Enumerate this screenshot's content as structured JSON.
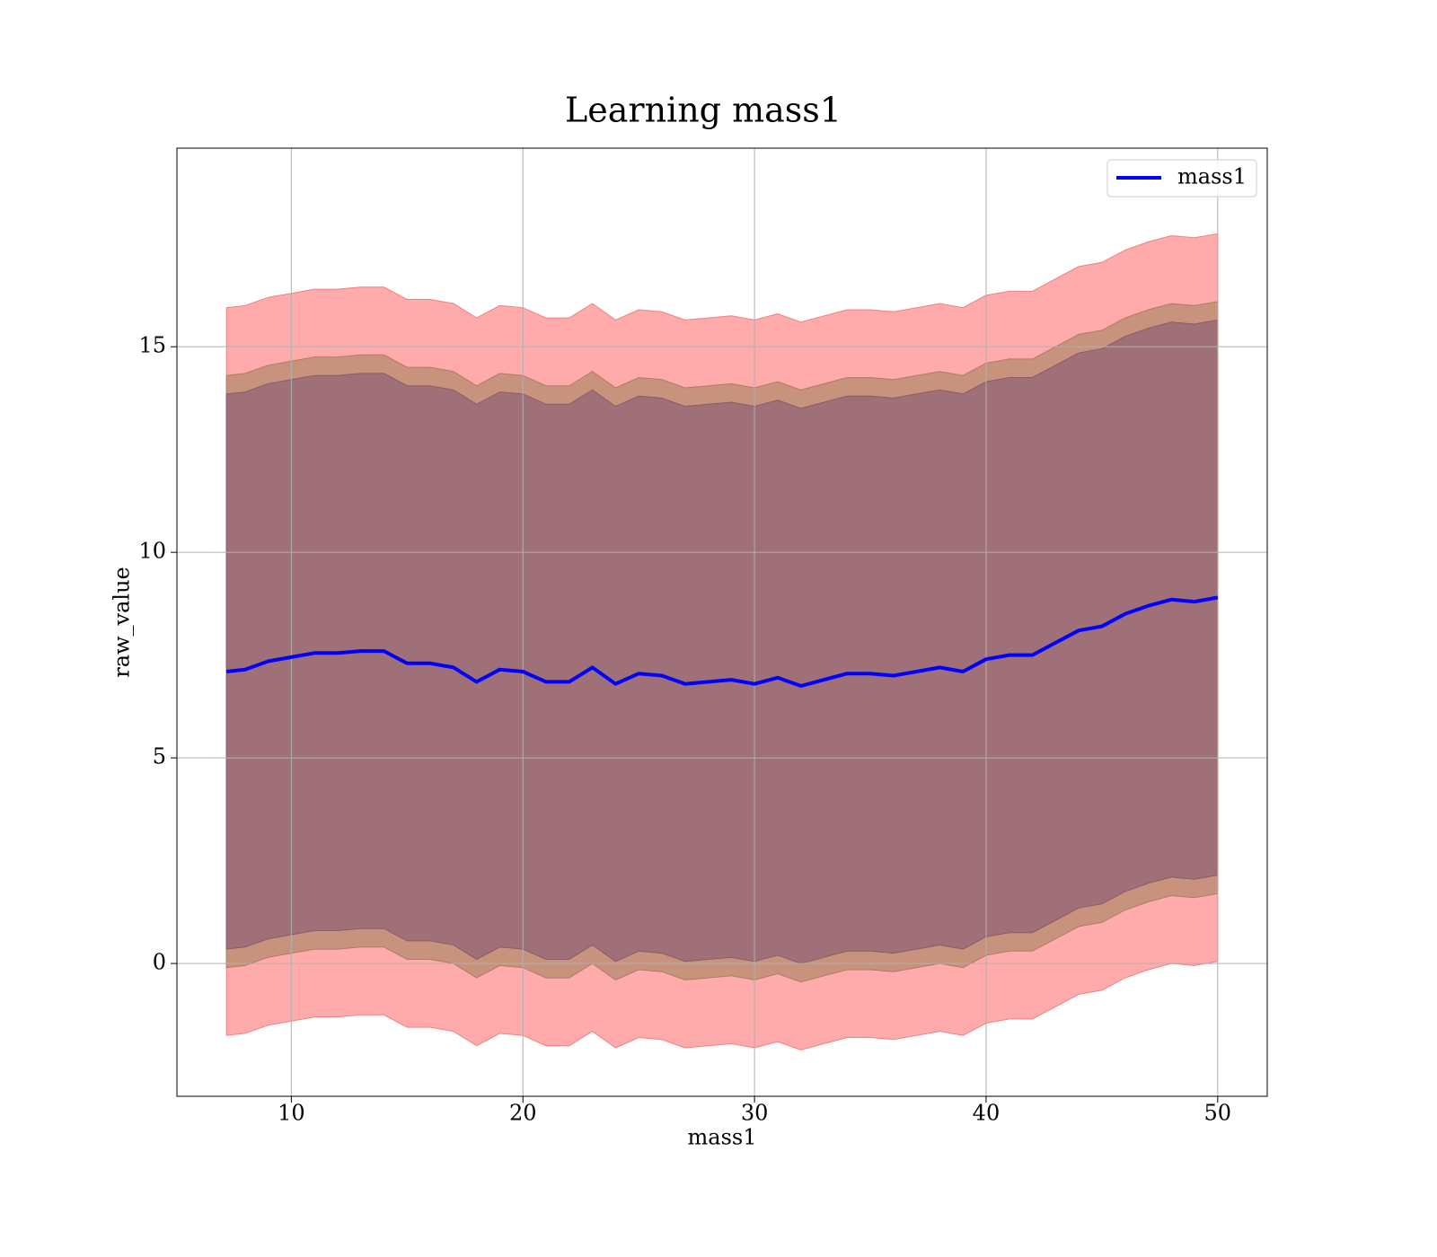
{
  "chart_data": {
    "type": "line",
    "title": "Learning mass1",
    "x_label": "mass1",
    "y_label": "raw_value",
    "x": [
      7.2,
      8,
      9,
      10,
      11,
      12,
      13,
      14,
      15,
      16,
      17,
      18,
      19,
      20,
      21,
      22,
      23,
      24,
      25,
      26,
      27,
      28,
      29,
      30,
      31,
      32,
      33,
      34,
      35,
      36,
      37,
      38,
      39,
      40,
      41,
      42,
      43,
      44,
      45,
      46,
      47,
      48,
      49,
      50
    ],
    "series": [
      {
        "name": "mass1",
        "color": "#0000ff",
        "values": [
          7.1,
          7.15,
          7.35,
          7.45,
          7.55,
          7.55,
          7.6,
          7.6,
          7.3,
          7.3,
          7.2,
          6.85,
          7.15,
          7.1,
          6.85,
          6.85,
          7.2,
          6.8,
          7.05,
          7.0,
          6.8,
          6.85,
          6.9,
          6.8,
          6.95,
          6.75,
          6.9,
          7.05,
          7.05,
          7.0,
          7.1,
          7.2,
          7.1,
          7.4,
          7.5,
          7.5,
          7.8,
          8.1,
          8.2,
          8.5,
          8.7,
          8.85,
          8.8,
          8.9
        ]
      }
    ],
    "bands": [
      {
        "color": "#ffabab",
        "edge": "#f08080",
        "upper": [
          15.95,
          16.0,
          16.2,
          16.3,
          16.4,
          16.4,
          16.45,
          16.45,
          16.15,
          16.15,
          16.05,
          15.7,
          16.0,
          15.95,
          15.7,
          15.7,
          16.05,
          15.65,
          15.9,
          15.85,
          15.65,
          15.7,
          15.75,
          15.65,
          15.8,
          15.6,
          15.75,
          15.9,
          15.9,
          15.85,
          15.95,
          16.05,
          15.95,
          16.25,
          16.35,
          16.35,
          16.65,
          16.95,
          17.05,
          17.35,
          17.55,
          17.7,
          17.65,
          17.75
        ],
        "lower": [
          -1.75,
          -1.7,
          -1.5,
          -1.4,
          -1.3,
          -1.3,
          -1.25,
          -1.25,
          -1.55,
          -1.55,
          -1.65,
          -2.0,
          -1.7,
          -1.75,
          -2.0,
          -2.0,
          -1.65,
          -2.05,
          -1.8,
          -1.85,
          -2.05,
          -2.0,
          -1.95,
          -2.05,
          -1.9,
          -2.1,
          -1.95,
          -1.8,
          -1.8,
          -1.85,
          -1.75,
          -1.65,
          -1.75,
          -1.45,
          -1.35,
          -1.35,
          -1.05,
          -0.75,
          -0.65,
          -0.35,
          -0.15,
          0.0,
          -0.05,
          0.05
        ]
      },
      {
        "color": "#c8937d",
        "edge": "#b07a66",
        "upper": [
          14.3,
          14.35,
          14.55,
          14.65,
          14.75,
          14.75,
          14.8,
          14.8,
          14.5,
          14.5,
          14.4,
          14.05,
          14.35,
          14.3,
          14.05,
          14.05,
          14.4,
          14.0,
          14.25,
          14.2,
          14.0,
          14.05,
          14.1,
          14.0,
          14.15,
          13.95,
          14.1,
          14.25,
          14.25,
          14.2,
          14.3,
          14.4,
          14.3,
          14.6,
          14.7,
          14.7,
          15.0,
          15.3,
          15.4,
          15.7,
          15.9,
          16.05,
          16.0,
          16.1
        ],
        "lower": [
          -0.1,
          -0.05,
          0.15,
          0.25,
          0.35,
          0.35,
          0.4,
          0.4,
          0.1,
          0.1,
          0.0,
          -0.35,
          -0.05,
          -0.1,
          -0.35,
          -0.35,
          0.0,
          -0.4,
          -0.15,
          -0.2,
          -0.4,
          -0.35,
          -0.3,
          -0.4,
          -0.25,
          -0.45,
          -0.3,
          -0.15,
          -0.15,
          -0.2,
          -0.1,
          0.0,
          -0.1,
          0.2,
          0.3,
          0.3,
          0.6,
          0.9,
          1.0,
          1.3,
          1.5,
          1.65,
          1.6,
          1.7
        ]
      },
      {
        "color": "#a07078",
        "edge": "#8a5a6a",
        "upper": [
          13.85,
          13.9,
          14.1,
          14.2,
          14.3,
          14.3,
          14.35,
          14.35,
          14.05,
          14.05,
          13.95,
          13.6,
          13.9,
          13.85,
          13.6,
          13.6,
          13.95,
          13.55,
          13.8,
          13.75,
          13.55,
          13.6,
          13.65,
          13.55,
          13.7,
          13.5,
          13.65,
          13.8,
          13.8,
          13.75,
          13.85,
          13.95,
          13.85,
          14.15,
          14.25,
          14.25,
          14.55,
          14.85,
          14.95,
          15.25,
          15.45,
          15.6,
          15.55,
          15.65
        ],
        "lower": [
          0.35,
          0.4,
          0.6,
          0.7,
          0.8,
          0.8,
          0.85,
          0.85,
          0.55,
          0.55,
          0.45,
          0.1,
          0.4,
          0.35,
          0.1,
          0.1,
          0.45,
          0.05,
          0.3,
          0.25,
          0.05,
          0.1,
          0.15,
          0.05,
          0.2,
          0.0,
          0.15,
          0.3,
          0.3,
          0.25,
          0.35,
          0.45,
          0.35,
          0.65,
          0.75,
          0.75,
          1.05,
          1.35,
          1.45,
          1.75,
          1.95,
          2.1,
          2.05,
          2.15
        ]
      }
    ],
    "xlim": [
      5.06,
      52.14
    ],
    "ylim": [
      -3.23,
      19.83
    ],
    "xticks": [
      10,
      20,
      30,
      40,
      50
    ],
    "yticks": [
      0,
      5,
      10,
      15
    ],
    "grid": true,
    "legend": "upper right"
  }
}
